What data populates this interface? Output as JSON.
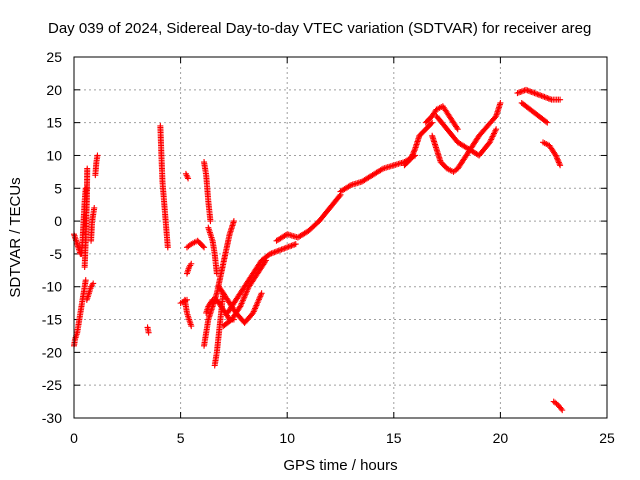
{
  "chart_data": {
    "type": "scatter",
    "title": "Day 039 of 2024, Sidereal Day-to-day VTEC variation (SDTVAR) for receiver areg",
    "xlabel": "GPS time / hours",
    "ylabel": "SDTVAR / TECUs",
    "xlim": [
      0,
      25
    ],
    "ylim": [
      -30,
      25
    ],
    "xticks": [
      0,
      5,
      10,
      15,
      20,
      25
    ],
    "yticks": [
      -30,
      -25,
      -20,
      -15,
      -10,
      -5,
      0,
      5,
      10,
      15,
      20,
      25
    ],
    "grid": true,
    "marker": "plus",
    "color": "#ff0000",
    "segments": [
      {
        "x": [
          0.0,
          0.3
        ],
        "y": [
          -2.0,
          -5.0
        ]
      },
      {
        "x": [
          0.0,
          0.05,
          0.15,
          0.25,
          0.35,
          0.45,
          0.55
        ],
        "y": [
          -19.0,
          -18.0,
          -17.0,
          -15.0,
          -13.0,
          -11.0,
          -9.0
        ]
      },
      {
        "x": [
          0.35,
          0.4,
          0.45,
          0.5,
          0.55
        ],
        "y": [
          -5.0,
          -3.0,
          0.0,
          3.0,
          5.0
        ]
      },
      {
        "x": [
          0.5,
          0.55,
          0.6,
          0.62
        ],
        "y": [
          -7.0,
          -3.0,
          3.0,
          8.0
        ]
      },
      {
        "x": [
          0.6,
          0.7,
          0.8,
          0.9
        ],
        "y": [
          -12.0,
          -11.0,
          -10.0,
          -9.5
        ]
      },
      {
        "x": [
          0.8,
          0.85,
          0.9,
          0.95
        ],
        "y": [
          -3.0,
          0.0,
          1.0,
          2.0
        ]
      },
      {
        "x": [
          1.0,
          1.05,
          1.1
        ],
        "y": [
          7.0,
          9.0,
          10.0
        ]
      },
      {
        "x": [
          3.45,
          3.5
        ],
        "y": [
          -16.2,
          -17.0
        ]
      },
      {
        "x": [
          4.05,
          4.1,
          4.15,
          4.25,
          4.35,
          4.4
        ],
        "y": [
          14.5,
          10.0,
          6.0,
          2.0,
          -2.0,
          -4.0
        ]
      },
      {
        "x": [
          5.0,
          5.3
        ],
        "y": [
          -12.5,
          -12.0
        ]
      },
      {
        "x": [
          5.2,
          5.3,
          5.4,
          5.5
        ],
        "y": [
          -12.0,
          -14.0,
          -15.0,
          -16.0
        ]
      },
      {
        "x": [
          5.25,
          5.35
        ],
        "y": [
          7.2,
          6.5
        ]
      },
      {
        "x": [
          5.3,
          5.5,
          5.8,
          6.1
        ],
        "y": [
          -4.0,
          -3.5,
          -3.0,
          -4.0
        ]
      },
      {
        "x": [
          5.3,
          5.4,
          5.5
        ],
        "y": [
          -8.0,
          -7.0,
          -6.5
        ]
      },
      {
        "x": [
          6.1,
          6.2,
          6.3,
          6.4
        ],
        "y": [
          9.0,
          7.0,
          3.0,
          0.0
        ]
      },
      {
        "x": [
          6.3,
          6.4,
          6.5,
          6.6,
          6.7
        ],
        "y": [
          -1.0,
          -2.0,
          -3.0,
          -5.0,
          -8.0
        ]
      },
      {
        "x": [
          6.1,
          6.2,
          6.3,
          6.5,
          6.7,
          6.9,
          7.1,
          7.3,
          7.5
        ],
        "y": [
          -19.0,
          -17.0,
          -15.0,
          -13.0,
          -11.0,
          -8.0,
          -5.0,
          -2.0,
          0.0
        ]
      },
      {
        "x": [
          6.2,
          6.3,
          6.5,
          6.7,
          6.9,
          7.1,
          7.3,
          7.5
        ],
        "y": [
          -14.0,
          -13.0,
          -12.0,
          -12.0,
          -13.0,
          -14.0,
          -15.0,
          -15.0
        ]
      },
      {
        "x": [
          6.6,
          6.7,
          6.8,
          6.9,
          7.0
        ],
        "y": [
          -22.0,
          -20.0,
          -17.0,
          -14.0,
          -11.0
        ]
      },
      {
        "x": [
          6.8,
          7.2,
          7.6,
          8.0,
          8.4,
          8.8
        ],
        "y": [
          -10.0,
          -12.0,
          -14.0,
          -15.5,
          -14.0,
          -11.0
        ]
      },
      {
        "x": [
          7.0,
          7.4,
          7.8,
          8.2,
          8.6,
          9.0
        ],
        "y": [
          -16.0,
          -15.0,
          -13.0,
          -10.0,
          -8.0,
          -6.0
        ]
      },
      {
        "x": [
          7.2,
          7.6,
          8.0,
          8.4,
          8.8,
          9.2,
          9.6,
          10.0,
          10.4
        ],
        "y": [
          -14.0,
          -12.0,
          -10.0,
          -8.0,
          -6.0,
          -5.0,
          -4.5,
          -4.0,
          -3.5
        ]
      },
      {
        "x": [
          9.5,
          10.0,
          10.5,
          11.0,
          11.5,
          12.0,
          12.5
        ],
        "y": [
          -3.0,
          -2.0,
          -2.5,
          -1.5,
          0.0,
          2.0,
          4.0
        ]
      },
      {
        "x": [
          12.5,
          13.0,
          13.5,
          14.0,
          14.5,
          15.0,
          15.5,
          16.0
        ],
        "y": [
          4.5,
          5.5,
          6.0,
          7.0,
          8.0,
          8.5,
          9.0,
          10.0
        ]
      },
      {
        "x": [
          15.5,
          15.8,
          16.0,
          16.2,
          16.5,
          16.8
        ],
        "y": [
          8.5,
          9.5,
          11.0,
          13.0,
          14.0,
          15.0
        ]
      },
      {
        "x": [
          16.5,
          16.8,
          17.0,
          17.3,
          17.6,
          18.0
        ],
        "y": [
          15.0,
          16.0,
          17.0,
          17.5,
          16.0,
          14.0
        ]
      },
      {
        "x": [
          16.8,
          17.0,
          17.2,
          17.5,
          17.8,
          18.0,
          18.2
        ],
        "y": [
          13.0,
          11.0,
          9.0,
          8.0,
          7.5,
          8.0,
          9.0
        ]
      },
      {
        "x": [
          17.0,
          17.5,
          18.0,
          18.5,
          19.0,
          19.5,
          19.8
        ],
        "y": [
          16.0,
          14.0,
          12.0,
          11.0,
          10.0,
          12.0,
          14.0
        ]
      },
      {
        "x": [
          18.2,
          18.6,
          19.0,
          19.4,
          19.8,
          20.0
        ],
        "y": [
          9.0,
          11.0,
          13.0,
          14.5,
          16.0,
          18.0
        ]
      },
      {
        "x": [
          20.8,
          21.2,
          21.6,
          22.0,
          22.4,
          22.8
        ],
        "y": [
          19.5,
          20.0,
          19.5,
          19.0,
          18.5,
          18.5
        ]
      },
      {
        "x": [
          21.0,
          21.4,
          21.8,
          22.2
        ],
        "y": [
          18.0,
          17.0,
          16.0,
          15.0
        ]
      },
      {
        "x": [
          22.0,
          22.3,
          22.6,
          22.8
        ],
        "y": [
          12.0,
          11.5,
          10.0,
          8.5
        ]
      },
      {
        "x": [
          22.5,
          22.7,
          22.9
        ],
        "y": [
          -27.5,
          -28.0,
          -28.8
        ]
      }
    ]
  }
}
